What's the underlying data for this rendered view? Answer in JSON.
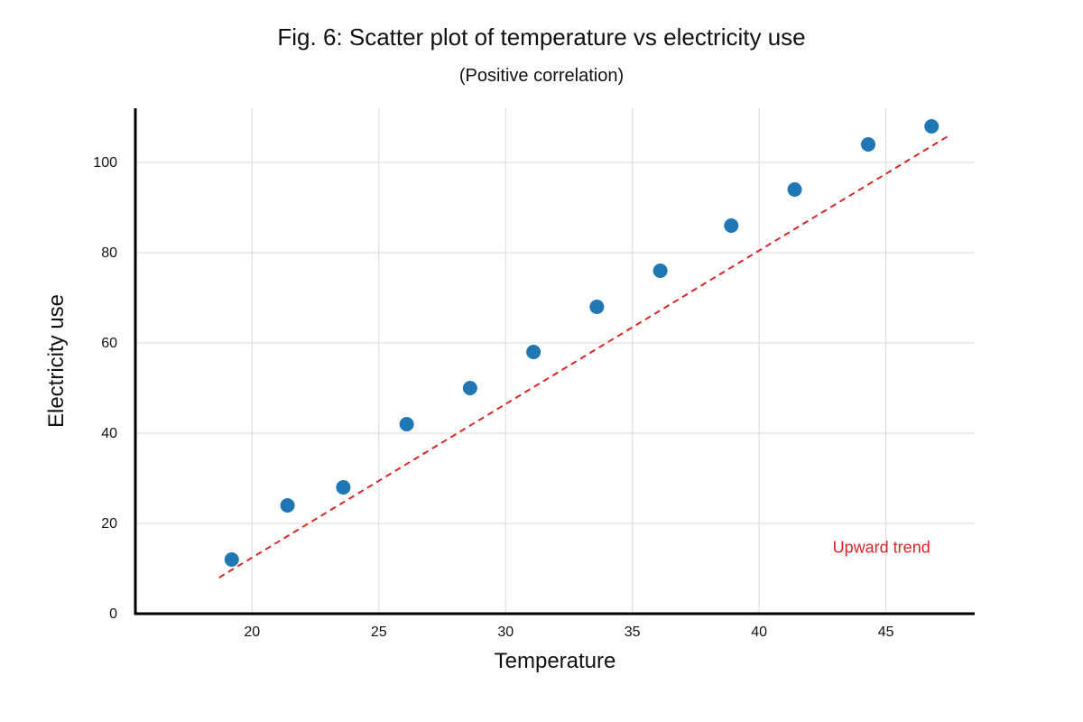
{
  "chart_data": {
    "type": "scatter",
    "title": "Fig. 6: Scatter plot of temperature vs electricity use",
    "subtitle": "(Positive correlation)",
    "xlabel": "Temperature",
    "ylabel": "Electricity use",
    "xlim": [
      15.4,
      48.5
    ],
    "ylim": [
      0,
      112
    ],
    "xticks": [
      20,
      25,
      30,
      35,
      40,
      45
    ],
    "yticks": [
      0,
      20,
      40,
      60,
      80,
      100
    ],
    "grid": true,
    "series": [
      {
        "color": "#1f77b4",
        "x": [
          19.2,
          21.4,
          23.6,
          26.1,
          28.6,
          31.1,
          33.6,
          36.1,
          38.9,
          41.4,
          44.3,
          46.8
        ],
        "y": [
          12,
          24,
          28,
          42,
          50,
          58,
          68,
          76,
          86,
          94,
          104,
          108
        ]
      }
    ],
    "trendline": {
      "color": "#d62728",
      "style": "dashed",
      "x": [
        18.7,
        47.5
      ],
      "y": [
        8,
        106
      ]
    },
    "annotation": {
      "text": "Upward trend",
      "color": "#d62728",
      "x": 42.9,
      "y": 13.5
    }
  }
}
